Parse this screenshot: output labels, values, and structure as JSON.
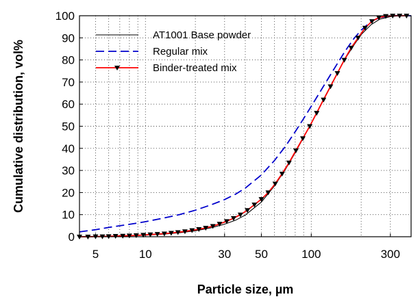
{
  "chart_data": {
    "type": "line",
    "title": "",
    "xlabel": "Particle size, µm",
    "ylabel": "Cumulative distribution, vol%",
    "xscale": "log",
    "xlim": [
      4,
      400
    ],
    "ylim": [
      0,
      100
    ],
    "x_ticks": [
      5,
      10,
      30,
      50,
      100,
      300
    ],
    "y_ticks": [
      0,
      10,
      20,
      30,
      40,
      50,
      60,
      70,
      80,
      90,
      100
    ],
    "grid": true,
    "legend_position": "top-left",
    "series": [
      {
        "name": "AT1001 Base powder",
        "color": "#000000",
        "style": "solid",
        "x": [
          4,
          5,
          6,
          8,
          10,
          13,
          16,
          20,
          25,
          30,
          35,
          40,
          50,
          60,
          70,
          80,
          90,
          100,
          120,
          140,
          160,
          180,
          200,
          230,
          260,
          300,
          340,
          400
        ],
        "y": [
          0,
          0.1,
          0.2,
          0.4,
          0.7,
          1.2,
          1.8,
          2.7,
          4.1,
          5.7,
          7.5,
          9.8,
          15.7,
          23,
          30.6,
          38,
          45,
          51.5,
          63,
          72.5,
          80.5,
          86.5,
          91.5,
          96,
          98.5,
          99.6,
          100,
          100
        ]
      },
      {
        "name": "Regular mix",
        "color": "#0000cc",
        "style": "dashed",
        "x": [
          4,
          5,
          6,
          8,
          10,
          13,
          16,
          20,
          25,
          30,
          35,
          40,
          50,
          60,
          70,
          80,
          90,
          100,
          120,
          140,
          160,
          180,
          200,
          230,
          260,
          300,
          340,
          400
        ],
        "y": [
          2.2,
          3.2,
          4.2,
          5.6,
          6.8,
          8.5,
          10,
          12,
          14.5,
          16.8,
          19.3,
          22,
          28,
          34.5,
          41,
          47.5,
          53.5,
          59,
          68.8,
          77,
          84,
          89.5,
          93.5,
          97.5,
          99.2,
          100,
          100,
          100
        ]
      },
      {
        "name": "Binder-treated mix",
        "color": "#ff0000",
        "marker_color": "#000000",
        "style": "solid-markers",
        "x": [
          4,
          4.5,
          5,
          5.5,
          6,
          6.6,
          7.3,
          8,
          8.8,
          9.7,
          10.7,
          11.8,
          13,
          14.3,
          15.7,
          17.3,
          19.1,
          21,
          23.1,
          25.5,
          28,
          30.9,
          34,
          37.4,
          41.2,
          45.4,
          50,
          55,
          60.6,
          66.7,
          73.4,
          80.8,
          88.9,
          97.9,
          107.8,
          118.6,
          130.6,
          143.7,
          158.2,
          174.2,
          191.7,
          211,
          232.3,
          255.7,
          281.5,
          309.9,
          341.1,
          375.5
        ],
        "y": [
          0,
          0,
          0.1,
          0.1,
          0.2,
          0.3,
          0.4,
          0.5,
          0.6,
          0.8,
          1,
          1.2,
          1.4,
          1.7,
          2,
          2.4,
          2.9,
          3.4,
          4,
          4.8,
          5.8,
          7,
          8.4,
          10,
          12,
          14.5,
          17,
          20,
          24,
          28.5,
          33.5,
          39,
          44.5,
          50,
          56,
          62,
          68,
          74,
          80,
          85.5,
          90,
          94.5,
          97.5,
          99.2,
          99.8,
          100,
          100,
          100
        ]
      }
    ]
  }
}
